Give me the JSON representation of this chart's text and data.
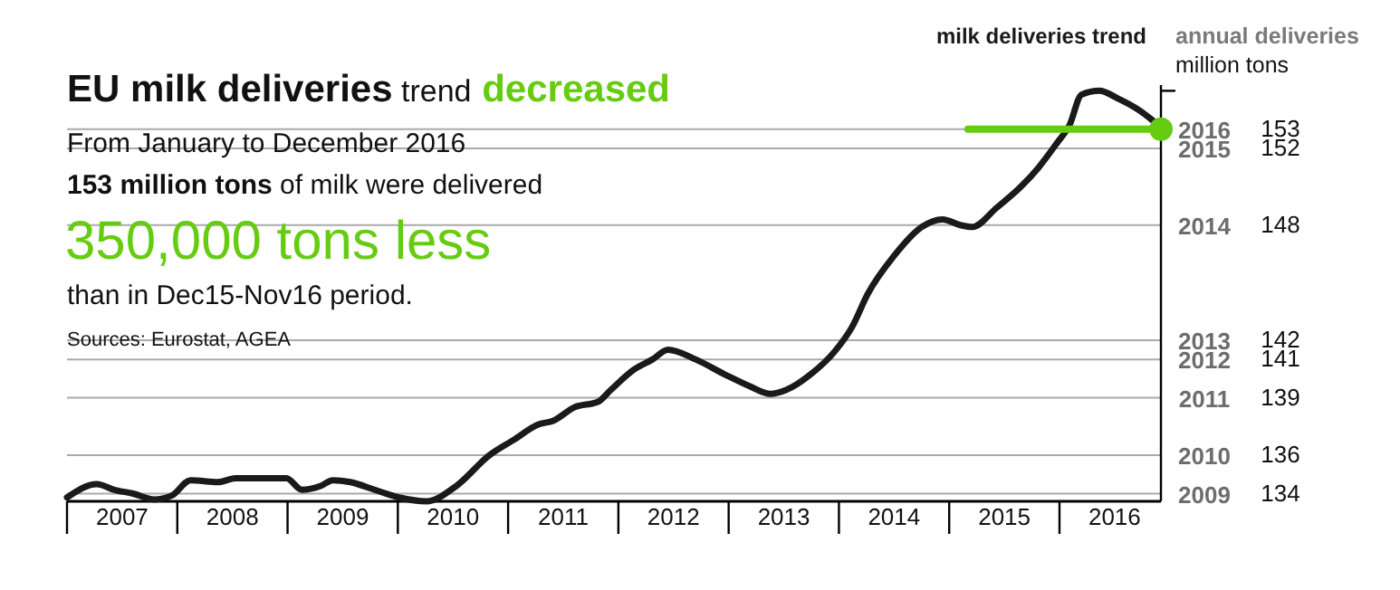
{
  "chart_data": {
    "type": "line",
    "title": "EU milk deliveries trend decreased",
    "subtitle": "From January to December 2016",
    "ylabel": "annual deliveries",
    "annotations": [
      "million tons",
      "153 million tons of milk were delivered",
      "350,000 tons less",
      "than in Dec15-Nov16 period.",
      "Sources: Eurostat, AGEA",
      "2009",
      "2010",
      "2011",
      "2012",
      "2013",
      "2014",
      "2015",
      "2016"
    ],
    "xlim": [
      2007,
      2016.92
    ],
    "xticks": [
      {
        "value": 2007.5,
        "label": "2007"
      },
      {
        "value": 2008.5,
        "label": "2008"
      },
      {
        "value": 2009.5,
        "label": "2009"
      },
      {
        "value": 2010.5,
        "label": "2010"
      },
      {
        "value": 2011.5,
        "label": "2011"
      },
      {
        "value": 2012.5,
        "label": "2012"
      },
      {
        "value": 2013.5,
        "label": "2013"
      },
      {
        "value": 2014.5,
        "label": "2014"
      },
      {
        "value": 2015.5,
        "label": "2015"
      },
      {
        "value": 2016.5,
        "label": "2016"
      }
    ],
    "ylim": [
      133.6,
      155.3
    ],
    "yticks": [
      134,
      136,
      139,
      141,
      142,
      148,
      152,
      153,
      {
        "value": 155,
        "label": null
      }
    ],
    "grid": "y",
    "marker": "none",
    "series": [
      {
        "name": "milk deliveries trend",
        "color": "#1a1a1a",
        "x": [
          2007.0,
          2007.27,
          2007.43,
          2007.6,
          2007.79,
          2007.95,
          2008.12,
          2008.37,
          2008.53,
          2008.8,
          2008.99,
          2009.13,
          2009.3,
          2009.41,
          2009.57,
          2009.79,
          2010.01,
          2010.26,
          2010.53,
          2010.83,
          2011.05,
          2011.27,
          2011.41,
          2011.6,
          2011.82,
          2011.93,
          2012.15,
          2012.31,
          2012.45,
          2012.7,
          2012.97,
          2013.19,
          2013.38,
          2013.52,
          2013.74,
          2013.96,
          2014.12,
          2014.26,
          2014.5,
          2014.75,
          2014.94,
          2015.1,
          2015.21,
          2015.43,
          2015.65,
          2015.81,
          2015.98,
          2016.09,
          2016.2,
          2016.36,
          2016.53,
          2016.72,
          2016.92
        ],
        "values": [
          133.8,
          134.5,
          134.2,
          134.0,
          133.7,
          133.9,
          134.7,
          134.6,
          134.8,
          134.8,
          134.8,
          134.2,
          134.4,
          134.7,
          134.6,
          134.2,
          133.8,
          133.6,
          134.4,
          136.0,
          136.8,
          137.6,
          137.8,
          138.5,
          138.8,
          139.4,
          140.5,
          141.0,
          141.5,
          141.0,
          140.2,
          139.6,
          139.2,
          139.4,
          140.2,
          141.4,
          142.7,
          144.4,
          146.4,
          147.9,
          148.3,
          148.0,
          147.9,
          148.9,
          150.0,
          151.0,
          152.3,
          153.2,
          154.8,
          155.0,
          154.6,
          154.0,
          153.1
        ]
      },
      {
        "type": "line",
        "color": "#66cc11",
        "x": [
          2015.17,
          2016.92
        ],
        "values": [
          153.0,
          153.0
        ]
      },
      {
        "type": "scatter",
        "color": "#66cc11",
        "marker": "circle",
        "x": [
          2016.92
        ],
        "values": [
          153.0
        ]
      }
    ]
  }
}
